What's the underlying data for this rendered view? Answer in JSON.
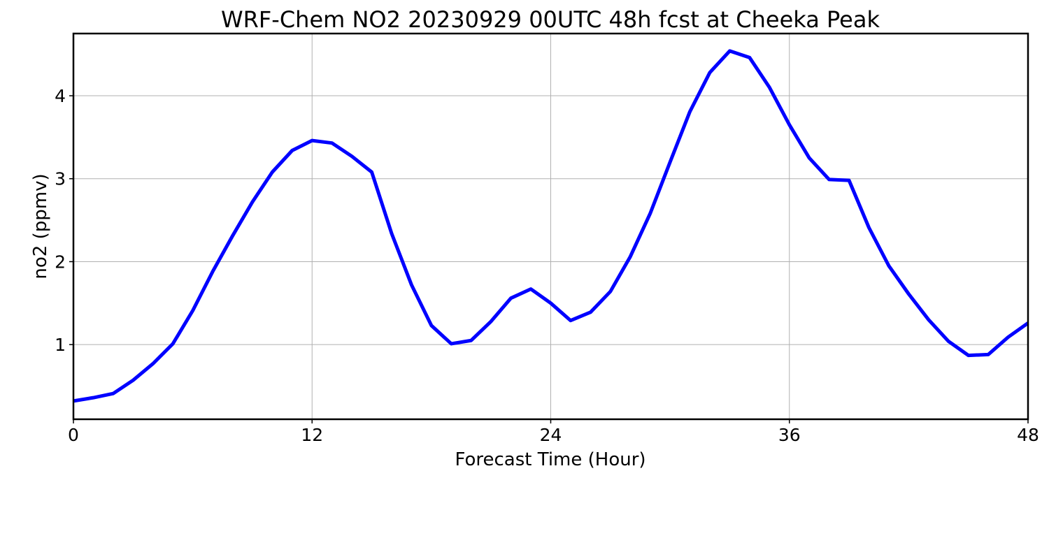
{
  "chart_data": {
    "type": "line",
    "title": "WRF-Chem NO2  20230929 00UTC 48h fcst at Cheeka Peak",
    "xlabel": "Forecast Time (Hour)",
    "ylabel": "no2  (ppmv)",
    "xlim": [
      0,
      48
    ],
    "ylim": [
      0.1,
      4.75
    ],
    "xticks": [
      0,
      12,
      24,
      36,
      48
    ],
    "yticks": [
      1,
      2,
      3,
      4
    ],
    "grid": true,
    "series": [
      {
        "color": "#0000ff",
        "x": [
          0,
          1,
          2,
          3,
          4,
          5,
          6,
          7,
          8,
          9,
          10,
          11,
          12,
          13,
          14,
          15,
          16,
          17,
          18,
          19,
          20,
          21,
          22,
          23,
          24,
          25,
          26,
          27,
          28,
          29,
          30,
          31,
          32,
          33,
          34,
          35,
          36,
          37,
          38,
          39,
          40,
          41,
          42,
          43,
          44,
          45,
          46,
          47,
          48
        ],
        "values": [
          0.32,
          0.36,
          0.41,
          0.57,
          0.77,
          1.01,
          1.41,
          1.88,
          2.31,
          2.72,
          3.08,
          3.34,
          3.46,
          3.43,
          3.27,
          3.08,
          2.34,
          1.72,
          1.23,
          1.01,
          1.05,
          1.28,
          1.56,
          1.67,
          1.5,
          1.29,
          1.39,
          1.64,
          2.06,
          2.58,
          3.2,
          3.81,
          4.28,
          4.54,
          4.46,
          4.1,
          3.65,
          3.25,
          2.99,
          2.98,
          2.41,
          1.95,
          1.61,
          1.3,
          1.04,
          0.87,
          0.88,
          1.09,
          1.26
        ]
      }
    ]
  }
}
